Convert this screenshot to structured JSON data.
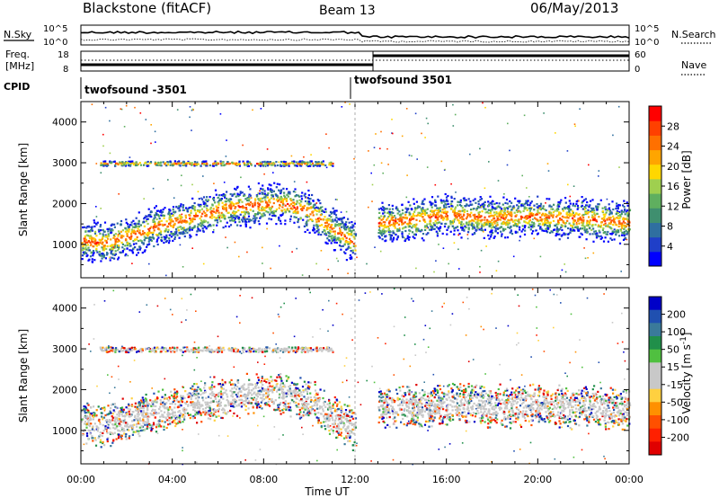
{
  "header": {
    "radar": "Blackstone (fitACF)",
    "beam": "Beam 13",
    "date": "06/May/2013"
  },
  "strip_labels": {
    "nsky": "N.Sky",
    "freq": "Freq.",
    "freq_unit": "[MHz]",
    "cpid": "CPID",
    "nsearch": "N.Search",
    "nave": "Nave"
  },
  "cpid_segments": [
    {
      "start_h": 0,
      "end_h": 12.0,
      "label": "twofsound  -3501"
    },
    {
      "start_h": 12.0,
      "end_h": 24,
      "label": "twofsound  3501"
    }
  ],
  "noise_axis": {
    "top": "10^5",
    "bottom": "10^0"
  },
  "freq_axis": {
    "ticks": [
      "18",
      "8"
    ],
    "ylim": [
      8,
      18
    ]
  },
  "nave_axis": {
    "ticks": [
      "60",
      "0"
    ],
    "ylim": [
      0,
      60
    ]
  },
  "chart_data": [
    {
      "type": "heatmap",
      "name": "power",
      "xlabel": "Time UT",
      "ylabel": "Slant Range [km]",
      "xlim": [
        0,
        24
      ],
      "ylim": [
        180,
        4500
      ],
      "x_ticks": [
        "00:00",
        "04:00",
        "08:00",
        "12:00",
        "16:00",
        "20:00",
        "00:00"
      ],
      "y_ticks": [
        1000,
        2000,
        3000,
        4000
      ],
      "colorbar": {
        "label": "Power [dB]",
        "ticks": [
          "4",
          "8",
          "12",
          "16",
          "20",
          "24",
          "28"
        ],
        "colors": [
          "#0000ff",
          "#1f3fc8",
          "#2f6fa0",
          "#3f8f6f",
          "#5faf5f",
          "#9fcf4f",
          "#ffd700",
          "#ffa500",
          "#ff7000",
          "#ff4000",
          "#ff0000"
        ]
      },
      "scatter_bands": [
        {
          "x": [
            0,
            1,
            2,
            3,
            4,
            5,
            6,
            7,
            8,
            9,
            10,
            11,
            12
          ],
          "y": [
            1100,
            1050,
            1200,
            1400,
            1550,
            1700,
            1850,
            1950,
            2000,
            2000,
            1800,
            1400,
            1050
          ]
        },
        {
          "x": [
            13,
            14,
            15,
            16,
            17,
            18,
            19,
            20,
            21,
            22,
            23,
            24
          ],
          "y": [
            1550,
            1600,
            1650,
            1750,
            1700,
            1650,
            1700,
            1700,
            1650,
            1650,
            1600,
            1550
          ]
        },
        {
          "x": [
            0.8,
            4,
            8,
            11
          ],
          "y": [
            3000,
            3000,
            3000,
            3000
          ]
        }
      ]
    },
    {
      "type": "heatmap",
      "name": "velocity",
      "xlabel": "Time UT",
      "ylabel": "Slant Range [km]",
      "xlim": [
        0,
        24
      ],
      "ylim": [
        180,
        4500
      ],
      "x_ticks": [
        "00:00",
        "04:00",
        "08:00",
        "12:00",
        "16:00",
        "20:00",
        "00:00"
      ],
      "y_ticks": [
        1000,
        2000,
        3000,
        4000
      ],
      "colorbar": {
        "label": "Velocity [m s",
        "label_sup": "-1",
        "label_end": "]",
        "ticks": [
          "200",
          "100",
          "50",
          "15",
          "-15",
          "-50",
          "-100",
          "-200"
        ],
        "colors": [
          "#0000c8",
          "#2050b0",
          "#3a7a9a",
          "#208f4a",
          "#50c040",
          "#c8c8c8",
          "#c8c8c8",
          "#ffd040",
          "#ff9000",
          "#ff5000",
          "#ff2000",
          "#e00000"
        ]
      },
      "scatter_bands": [
        {
          "x": [
            0,
            1,
            2,
            3,
            4,
            5,
            6,
            7,
            8,
            9,
            10,
            11,
            12
          ],
          "y": [
            1200,
            1100,
            1300,
            1450,
            1550,
            1700,
            1800,
            1900,
            1950,
            1900,
            1750,
            1350,
            1000
          ]
        },
        {
          "x": [
            13,
            14,
            15,
            16,
            17,
            18,
            19,
            20,
            21,
            22,
            23,
            24
          ],
          "y": [
            1550,
            1600,
            1600,
            1650,
            1650,
            1600,
            1600,
            1650,
            1600,
            1600,
            1550,
            1550
          ]
        },
        {
          "x": [
            0.8,
            4,
            8,
            11
          ],
          "y": [
            3000,
            3000,
            3000,
            3000
          ]
        }
      ]
    }
  ]
}
